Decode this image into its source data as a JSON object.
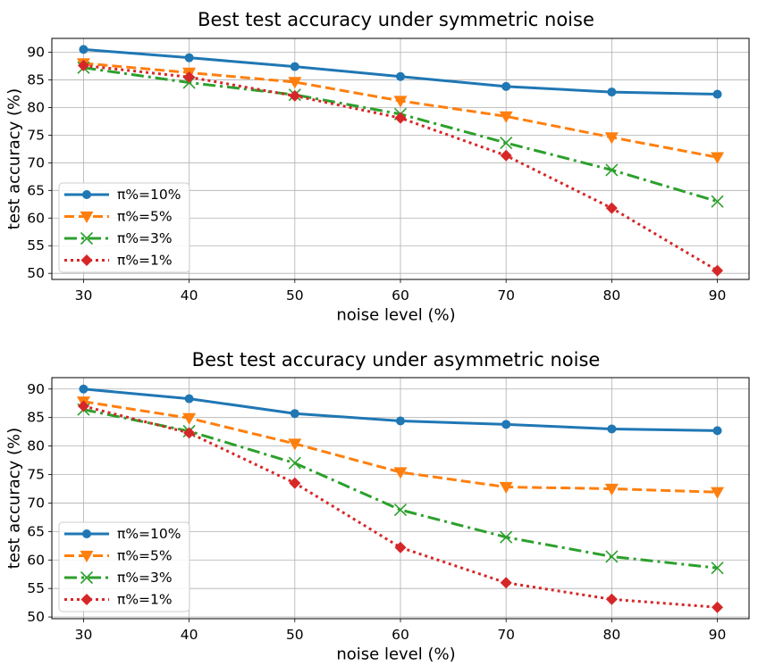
{
  "chart_data": [
    {
      "type": "line",
      "title": "Best test accuracy under symmetric noise",
      "xlabel": "noise level (%)",
      "ylabel": "test accuracy (%)",
      "x": [
        30,
        40,
        50,
        60,
        70,
        80,
        90
      ],
      "xticks": [
        30,
        40,
        50,
        60,
        70,
        80,
        90
      ],
      "yticks": [
        50,
        55,
        60,
        65,
        70,
        75,
        80,
        85,
        90
      ],
      "xlim": [
        27,
        93
      ],
      "ylim": [
        48.9,
        92.5
      ],
      "grid": true,
      "legend_position": "lower-left",
      "series": [
        {
          "name": "π%=10%",
          "values": [
            90.5,
            89.0,
            87.4,
            85.6,
            83.8,
            82.8,
            82.4
          ],
          "color": "#1f77b4",
          "linestyle": "solid",
          "marker": "circle"
        },
        {
          "name": "π%=5%",
          "values": [
            88.0,
            86.3,
            84.6,
            81.2,
            78.4,
            74.6,
            71.0
          ],
          "color": "#ff7f0e",
          "linestyle": "dashed",
          "marker": "triangle-down"
        },
        {
          "name": "π%=3%",
          "values": [
            87.2,
            84.5,
            82.3,
            78.8,
            73.6,
            68.7,
            63.0
          ],
          "color": "#2ca02c",
          "linestyle": "dashdot",
          "marker": "x"
        },
        {
          "name": "π%=1%",
          "values": [
            87.6,
            85.5,
            82.1,
            78.1,
            71.3,
            61.8,
            50.5
          ],
          "color": "#d62728",
          "linestyle": "dotted",
          "marker": "diamond"
        }
      ]
    },
    {
      "type": "line",
      "title": "Best test accuracy under asymmetric noise",
      "xlabel": "noise level (%)",
      "ylabel": "test accuracy (%)",
      "x": [
        30,
        40,
        50,
        60,
        70,
        80,
        90
      ],
      "xticks": [
        30,
        40,
        50,
        60,
        70,
        80,
        90
      ],
      "yticks": [
        50,
        55,
        60,
        65,
        70,
        75,
        80,
        85,
        90
      ],
      "xlim": [
        27,
        93
      ],
      "ylim": [
        49.7,
        92
      ],
      "grid": true,
      "legend_position": "lower-left",
      "series": [
        {
          "name": "π%=10%",
          "values": [
            90.0,
            88.3,
            85.7,
            84.4,
            83.8,
            83.0,
            82.7
          ],
          "color": "#1f77b4",
          "linestyle": "solid",
          "marker": "circle"
        },
        {
          "name": "π%=5%",
          "values": [
            87.8,
            84.9,
            80.4,
            75.4,
            72.8,
            72.5,
            71.9
          ],
          "color": "#ff7f0e",
          "linestyle": "dashed",
          "marker": "triangle-down"
        },
        {
          "name": "π%=3%",
          "values": [
            86.4,
            82.6,
            77.0,
            68.8,
            64.0,
            60.6,
            58.6
          ],
          "color": "#2ca02c",
          "linestyle": "dashdot",
          "marker": "x"
        },
        {
          "name": "π%=1%",
          "values": [
            87.0,
            82.3,
            73.5,
            62.2,
            56.0,
            53.1,
            51.7
          ],
          "color": "#d62728",
          "linestyle": "dotted",
          "marker": "diamond"
        }
      ]
    }
  ]
}
